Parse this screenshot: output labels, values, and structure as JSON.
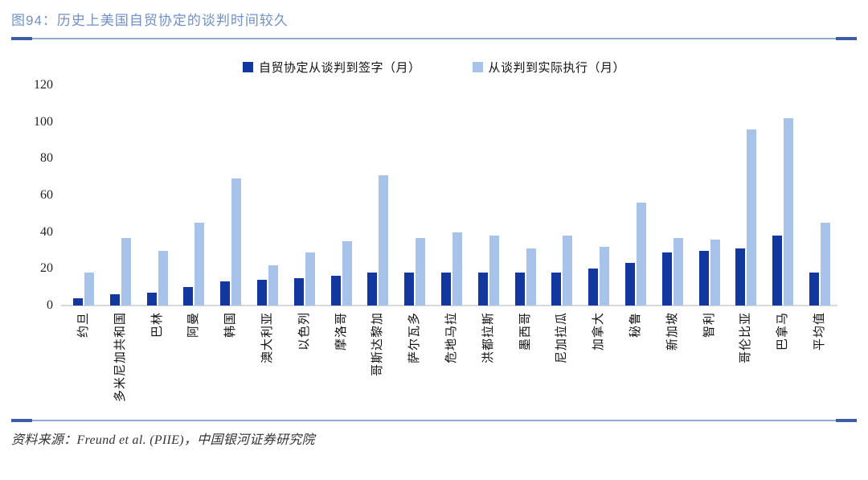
{
  "header": {
    "title": "图94：历史上美国自贸协定的谈判时间较久"
  },
  "chart_data": {
    "type": "bar",
    "title": "历史上美国自贸协定的谈判时间较久",
    "categories": [
      "约旦",
      "多米尼加共和国",
      "巴林",
      "阿曼",
      "韩国",
      "澳大利亚",
      "以色列",
      "摩洛哥",
      "哥斯达黎加",
      "萨尔瓦多",
      "危地马拉",
      "洪都拉斯",
      "墨西哥",
      "尼加拉瓜",
      "加拿大",
      "秘鲁",
      "新加坡",
      "智利",
      "哥伦比亚",
      "巴拿马",
      "平均值"
    ],
    "series": [
      {
        "name": "自贸协定从谈判到签字（月）",
        "color": "#12379F",
        "values": [
          4,
          6,
          7,
          10,
          13,
          14,
          15,
          16,
          18,
          18,
          18,
          18,
          18,
          18,
          20,
          23,
          29,
          30,
          31,
          38,
          18
        ]
      },
      {
        "name": "从谈判到实际执行（月）",
        "color": "#A8C3E9",
        "values": [
          18,
          37,
          30,
          45,
          69,
          22,
          29,
          35,
          71,
          37,
          40,
          38,
          31,
          38,
          32,
          56,
          37,
          36,
          96,
          102,
          45
        ]
      }
    ],
    "xlabel": "",
    "ylabel": "",
    "ylim": [
      0,
      120
    ],
    "yticks": [
      0,
      20,
      40,
      60,
      80,
      100,
      120
    ],
    "grid": false,
    "legend_position": "top-center"
  },
  "footer": {
    "source": "资料来源：Freund et al. (PIIE)，中国银河证券研究院"
  },
  "colors": {
    "title_text": "#7091C8",
    "rule_line": "#93ABD3",
    "rule_cap": "#3D5CA8",
    "axis_line": "#D9D9D9"
  }
}
